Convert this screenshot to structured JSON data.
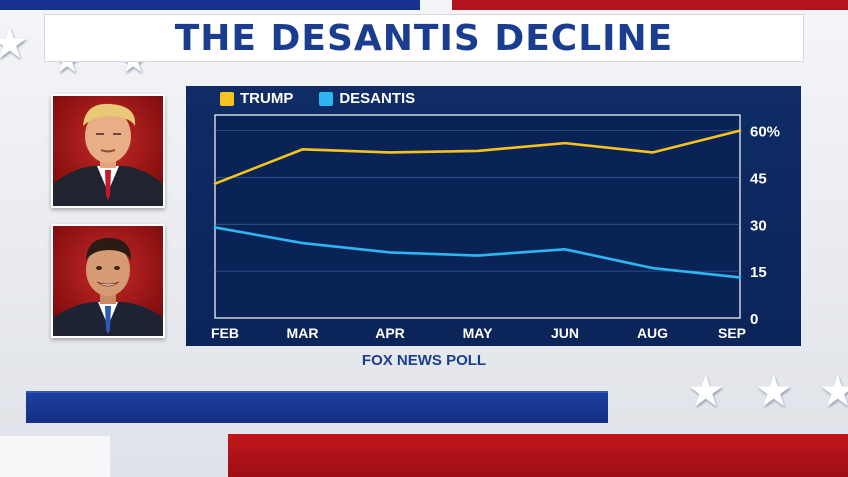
{
  "header": {
    "title": "THE DESANTIS DECLINE"
  },
  "source": "FOX NEWS POLL",
  "colors": {
    "trump": "#f5c31c",
    "desantis": "#2fb6f0",
    "panel": "#0d2862",
    "accent_blue": "#1b3d8f",
    "accent_red": "#b3131a"
  },
  "photos": [
    {
      "subject": "Trump"
    },
    {
      "subject": "DeSantis"
    }
  ],
  "chart_data": {
    "type": "line",
    "title": "",
    "xlabel": "",
    "ylabel": "",
    "categories": [
      "FEB",
      "MAR",
      "APR",
      "MAY",
      "JUN",
      "AUG",
      "SEP"
    ],
    "series": [
      {
        "name": "TRUMP",
        "values": [
          43,
          54,
          53,
          53.5,
          56,
          53,
          60
        ]
      },
      {
        "name": "DESANTIS",
        "values": [
          29,
          24,
          21,
          20,
          22,
          16,
          13
        ]
      }
    ],
    "ylim": [
      0,
      65
    ],
    "yticks": [
      {
        "value": 0,
        "label": "0"
      },
      {
        "value": 15,
        "label": "15"
      },
      {
        "value": 30,
        "label": "30"
      },
      {
        "value": 45,
        "label": "45"
      },
      {
        "value": 60,
        "label": "60%"
      }
    ],
    "grid": true,
    "legend": "top-left"
  }
}
